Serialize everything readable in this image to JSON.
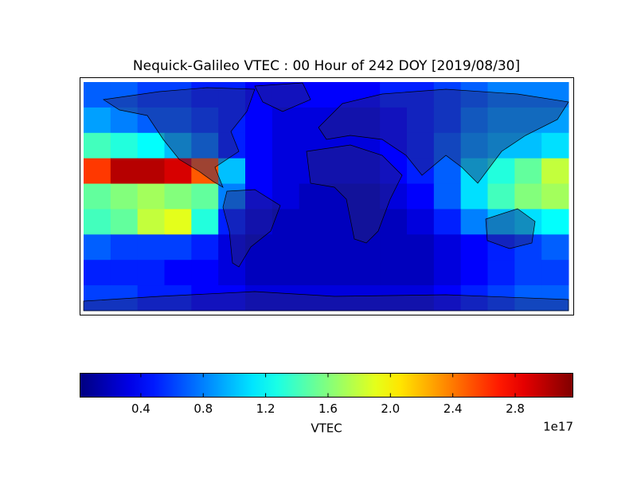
{
  "chart_data": {
    "type": "heatmap",
    "title": "Nequick-Galileo VTEC : 00 Hour of 242 DOY [2019/08/30]",
    "colormap": "jet",
    "xlim": [
      -180,
      180
    ],
    "ylim": [
      -90,
      90
    ],
    "values": [
      [
        0.7,
        0.7,
        0.6,
        0.6,
        0.5,
        0.5,
        0.4,
        0.4,
        0.4,
        0.4,
        0.4,
        0.5,
        0.5,
        0.6,
        0.7,
        0.8,
        0.8,
        0.8
      ],
      [
        0.9,
        0.8,
        0.7,
        0.7,
        0.6,
        0.5,
        0.4,
        0.3,
        0.3,
        0.3,
        0.3,
        0.4,
        0.5,
        0.6,
        0.8,
        0.9,
        0.9,
        0.9
      ],
      [
        1.4,
        1.3,
        1.2,
        1.0,
        0.8,
        0.5,
        0.4,
        0.3,
        0.3,
        0.3,
        0.3,
        0.4,
        0.5,
        0.7,
        0.9,
        1.0,
        1.0,
        1.1
      ],
      [
        2.6,
        3.0,
        3.0,
        2.9,
        2.5,
        1.0,
        0.4,
        0.3,
        0.3,
        0.3,
        0.3,
        0.4,
        0.5,
        0.7,
        1.1,
        1.3,
        1.5,
        1.8
      ],
      [
        1.5,
        1.6,
        1.7,
        1.6,
        1.5,
        0.8,
        0.4,
        0.3,
        0.2,
        0.2,
        0.2,
        0.3,
        0.4,
        0.7,
        1.1,
        1.4,
        1.6,
        1.7
      ],
      [
        1.4,
        1.5,
        1.8,
        1.9,
        1.3,
        0.5,
        0.3,
        0.2,
        0.2,
        0.2,
        0.2,
        0.2,
        0.3,
        0.5,
        0.8,
        1.0,
        1.1,
        1.2
      ],
      [
        0.7,
        0.6,
        0.6,
        0.6,
        0.5,
        0.3,
        0.2,
        0.2,
        0.2,
        0.2,
        0.2,
        0.2,
        0.2,
        0.3,
        0.4,
        0.5,
        0.6,
        0.7
      ],
      [
        0.5,
        0.5,
        0.5,
        0.4,
        0.4,
        0.3,
        0.2,
        0.2,
        0.2,
        0.2,
        0.2,
        0.2,
        0.2,
        0.3,
        0.4,
        0.5,
        0.6,
        0.6
      ],
      [
        0.6,
        0.6,
        0.5,
        0.5,
        0.4,
        0.4,
        0.3,
        0.3,
        0.3,
        0.3,
        0.3,
        0.3,
        0.3,
        0.4,
        0.5,
        0.6,
        0.7,
        0.7
      ]
    ],
    "clim": [
      0.01,
      3.17
    ],
    "cticks": [
      0.4,
      0.8,
      1.2,
      1.6,
      {
        "value": 2.0,
        "label": "2.0"
      },
      2.4,
      2.8
    ],
    "colorbar_label": "VTEC",
    "colorbar_offset": "1e17"
  }
}
